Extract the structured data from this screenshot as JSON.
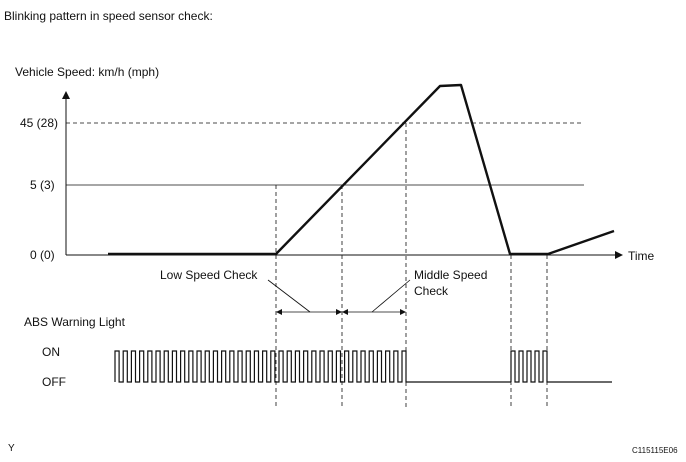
{
  "title": "Blinking pattern in speed sensor check:",
  "speed_axis_label": "Vehicle Speed: km/h (mph)",
  "time_label": "Time",
  "speed_levels": [
    {
      "label": "45 (28)",
      "value_kmh": 45,
      "value_mph": 28
    },
    {
      "label": "5 (3)",
      "value_kmh": 5,
      "value_mph": 3
    },
    {
      "label": "0 (0)",
      "value_kmh": 0,
      "value_mph": 0
    }
  ],
  "annotations": {
    "low_speed_check": "Low Speed Check",
    "middle_speed_check_line1": "Middle Speed",
    "middle_speed_check_line2": "Check"
  },
  "abs": {
    "label": "ABS Warning Light",
    "on_label": "ON",
    "off_label": "OFF"
  },
  "footer": {
    "left_mark": "Y",
    "figure_code": "C115115E06"
  }
}
